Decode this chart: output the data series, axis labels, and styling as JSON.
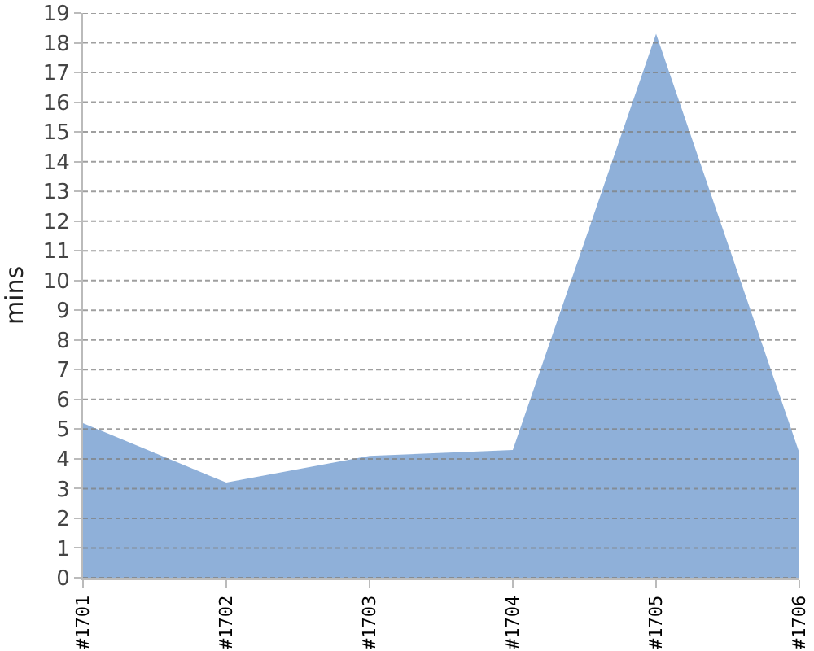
{
  "chart_data": {
    "type": "area",
    "ylabel": "mins",
    "categories": [
      "#1701",
      "#1702",
      "#1703",
      "#1704",
      "#1705",
      "#1706"
    ],
    "series": [
      {
        "color": "#8fb0d9",
        "values": [
          5.2,
          3.2,
          4.1,
          4.3,
          18.3,
          4.2
        ]
      }
    ],
    "ylim": [
      0,
      19
    ],
    "yticks": [
      0,
      1,
      2,
      3,
      4,
      5,
      6,
      7,
      8,
      9,
      10,
      11,
      12,
      13,
      14,
      15,
      16,
      17,
      18,
      19
    ],
    "grid": "y"
  }
}
